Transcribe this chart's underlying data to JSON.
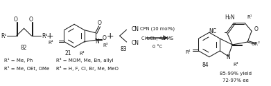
{
  "background_color": "#ffffff",
  "figsize": [
    3.91,
    1.25
  ],
  "dpi": 100,
  "gray": "#1a1a1a",
  "lw": 0.75,
  "comp82": {
    "label": "82",
    "footnote1": "R¹ = Me, Ph",
    "footnote2": "R¹ = Me, OEt, OMe"
  },
  "comp21": {
    "label": "21",
    "footnote1": "R³ = MOM, Me, Bn, allyl",
    "footnote2": "R⁴ = H, F, Cl, Br, Me, MeO"
  },
  "comp83": {
    "label": "83"
  },
  "comp84": {
    "label": "84"
  },
  "conditions": [
    "CPN (10 mol%)",
    "CH₂Cl₂, 4Å MS",
    "0 °C"
  ],
  "results": [
    "85-99% yield",
    "72-97% ee"
  ]
}
